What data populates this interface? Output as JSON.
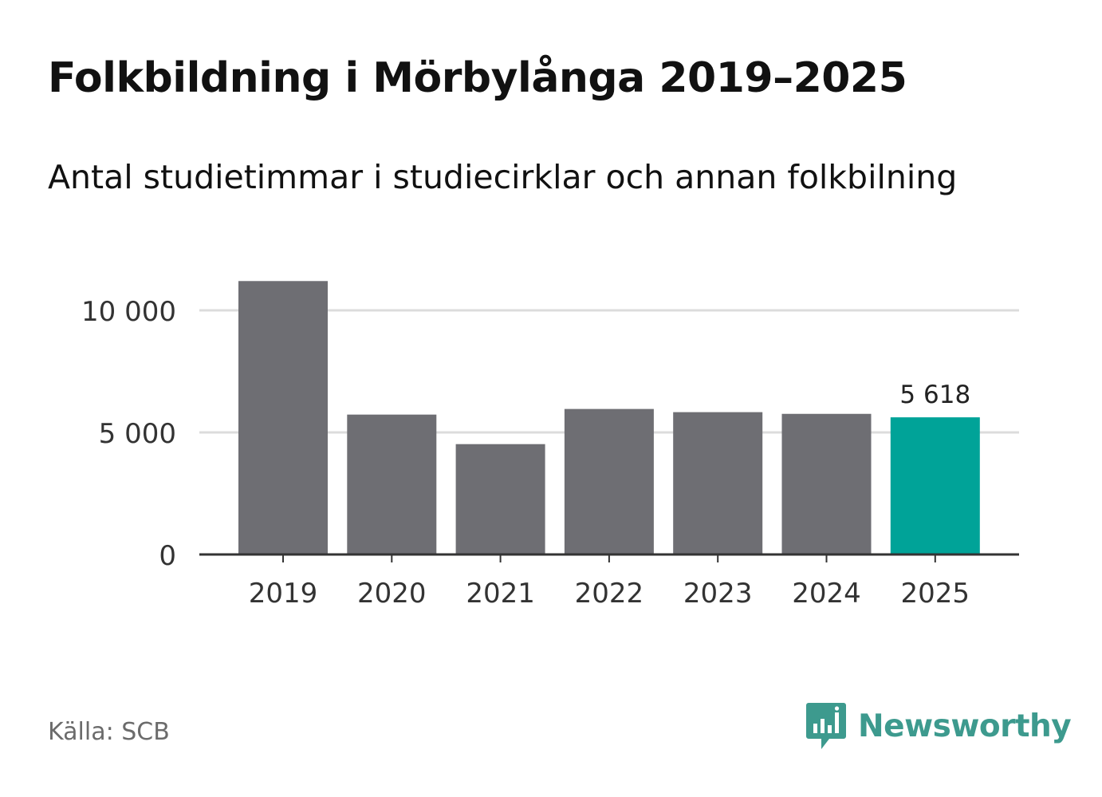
{
  "header": {
    "title": "Folkbildning i Mörbylånga 2019–2025",
    "subtitle": "Antal studietimmar i studiecirklar och annan folkbilning"
  },
  "footer": {
    "source": "Källa: SCB",
    "brand": "Newsworthy",
    "brand_icon": "bar-chart-speech-bubble-icon"
  },
  "colors": {
    "bar_default": "#6e6e73",
    "bar_highlight": "#00a398",
    "grid": "#dcdcdc",
    "axis": "#333333",
    "brand": "#3d9a8e"
  },
  "chart_data": {
    "type": "bar",
    "title": "Folkbildning i Mörbylånga 2019–2025",
    "subtitle": "Antal studietimmar i studiecirklar och annan folkbilning",
    "categories": [
      "2019",
      "2020",
      "2021",
      "2022",
      "2023",
      "2024",
      "2025"
    ],
    "values": [
      11200,
      5730,
      4520,
      5960,
      5830,
      5760,
      5618
    ],
    "highlight_index": 6,
    "data_labels": [
      {
        "index": 6,
        "text": "5 618"
      }
    ],
    "xlabel": "",
    "ylabel": "",
    "ylim": [
      0,
      12000
    ],
    "yticks": [
      0,
      5000,
      10000
    ],
    "ytick_labels": [
      "0",
      "5 000",
      "10 000"
    ],
    "grid": true
  }
}
